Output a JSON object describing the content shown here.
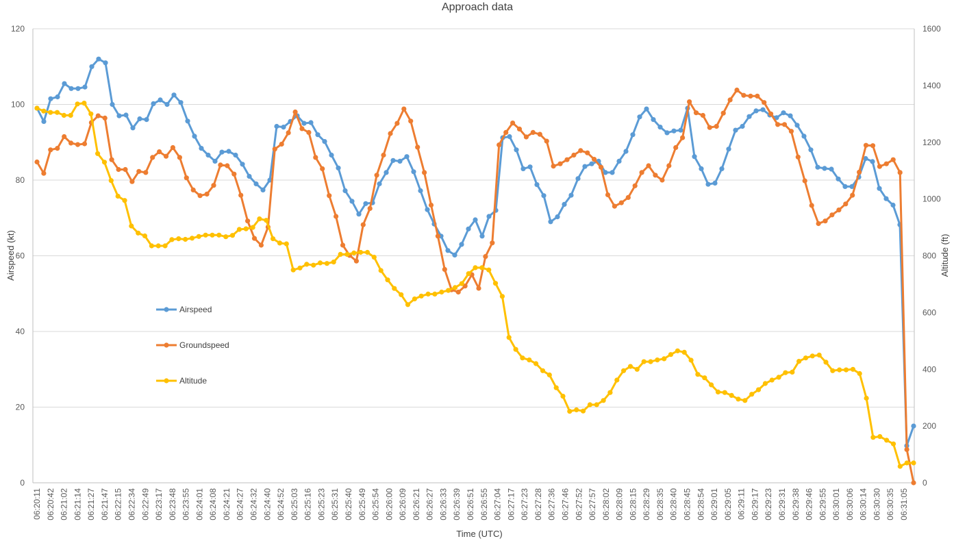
{
  "chart_data": {
    "type": "line",
    "title": "Approach data",
    "xlabel": "Time (UTC)",
    "ylabel": "Airspeed (kt)",
    "y2label": "Altitude (ft)",
    "ylim": [
      0,
      120
    ],
    "y2lim": [
      0,
      1600
    ],
    "yticks": [
      0,
      20,
      40,
      60,
      80,
      100,
      120
    ],
    "y2ticks": [
      0,
      200,
      400,
      600,
      800,
      1000,
      1200,
      1400,
      1600
    ],
    "grid": true,
    "legend_position": "left-middle",
    "x_tick_labels": [
      "06:20:11",
      "06:20:42",
      "06:21:02",
      "06:21:14",
      "06:21:27",
      "06:21:47",
      "06:22:15",
      "06:22:34",
      "06:22:49",
      "06:23:17",
      "06:23:48",
      "06:23:55",
      "06:24:01",
      "06:24:08",
      "06:24:21",
      "06:24:27",
      "06:24:32",
      "06:24:40",
      "06:24:52",
      "06:25:03",
      "06:25:16",
      "06:25:23",
      "06:25:31",
      "06:25:40",
      "06:25:49",
      "06:25:54",
      "06:26:00",
      "06:26:09",
      "06:26:21",
      "06:26:27",
      "06:26:33",
      "06:26:39",
      "06:26:51",
      "06:26:55",
      "06:27:04",
      "06:27:17",
      "06:27:23",
      "06:27:28",
      "06:27:36",
      "06:27:46",
      "06:27:52",
      "06:27:57",
      "06:28:02",
      "06:28:09",
      "06:28:15",
      "06:28:29",
      "06:28:35",
      "06:28:40",
      "06:28:45",
      "06:28:54",
      "06:29:01",
      "06:29:05",
      "06:29:11",
      "06:29:17",
      "06:29:23",
      "06:29:31",
      "06:29:38",
      "06:29:46",
      "06:29:55",
      "06:30:01",
      "06:30:06",
      "06:30:14",
      "06:30:30",
      "06:30:35",
      "06:31:05"
    ],
    "series": [
      {
        "name": "Airspeed",
        "axis": "left",
        "color": "#5B9BD5",
        "values": [
          99,
          95.5,
          101.5,
          102,
          105.5,
          104.2,
          104.2,
          104.6,
          110,
          112,
          111,
          100,
          97,
          97.2,
          93.8,
          96.2,
          96,
          100.2,
          101.2,
          100,
          102.5,
          100.5,
          95.6,
          91.6,
          88.4,
          86.6,
          85,
          87.4,
          87.6,
          86.6,
          84.2,
          81,
          79,
          77.4,
          80,
          94.2,
          94,
          95.5,
          97,
          95,
          95.2,
          92,
          90.2,
          86.6,
          83.2,
          77.2,
          74.4,
          71,
          73.8,
          74,
          79,
          82,
          85.2,
          85,
          86.2,
          82.2,
          77.2,
          72.2,
          68.4,
          65.2,
          61.4,
          60.2,
          63,
          67.1,
          69.5,
          65.2,
          70.4,
          72,
          91.2,
          91.5,
          88,
          83,
          83.5,
          78.8,
          75.9,
          69,
          70.3,
          73.6,
          76,
          80.4,
          83.6,
          84.3,
          85,
          82,
          82,
          85,
          87.6,
          92,
          96.7,
          98.8,
          96,
          94,
          92.5,
          93,
          93.2,
          99,
          86.2,
          83,
          78.9,
          79.2,
          83,
          88.2,
          93.2,
          94.2,
          96.8,
          98.3,
          98.6,
          97.2,
          96.5,
          97.8,
          97,
          94.5,
          91.6,
          88,
          83.4,
          83.1,
          82.9,
          80.3,
          78.3,
          78.3,
          80.8,
          85.7,
          84.9,
          77.8,
          75.1,
          73.4,
          68.2,
          9.8,
          15
        ]
      },
      {
        "name": "Groundspeed",
        "axis": "left",
        "color": "#ED7D31",
        "values": [
          84.8,
          81.8,
          88,
          88.4,
          91.5,
          89.8,
          89.4,
          89.6,
          95.2,
          97,
          96.4,
          85.4,
          82.8,
          82.8,
          79.6,
          82.3,
          82,
          86,
          87.5,
          86.3,
          88.6,
          86,
          80.6,
          77.4,
          75.9,
          76.3,
          78.6,
          84,
          83.8,
          81.6,
          76,
          69.2,
          64.6,
          62.8,
          67.6,
          88.2,
          89.5,
          92.5,
          98,
          93.6,
          92.6,
          86,
          83,
          75.9,
          70.4,
          62.8,
          60.1,
          58.6,
          68.2,
          72.5,
          81.3,
          86.6,
          92.3,
          95,
          98.8,
          95.6,
          88.7,
          82,
          73.4,
          65.2,
          56.4,
          51,
          50.4,
          52,
          55,
          51.4,
          59.8,
          63.4,
          89.3,
          92.6,
          95.1,
          93.5,
          91.4,
          92.6,
          92.1,
          90.3,
          83.7,
          84.3,
          85.4,
          86.6,
          87.8,
          87.2,
          85.5,
          83.4,
          76.1,
          73.1,
          74,
          75.4,
          78.5,
          82,
          83.8,
          81.3,
          80,
          83.8,
          88.6,
          91.2,
          100.7,
          97.8,
          97.1,
          93.9,
          94.2,
          97.7,
          101.2,
          103.8,
          102.4,
          102.2,
          102.2,
          100.5,
          97.5,
          94.7,
          94.7,
          92.9,
          86.1,
          79.8,
          73.3,
          68.5,
          69.2,
          70.8,
          72.1,
          73.7,
          76,
          82.1,
          89.2,
          89.1,
          83.6,
          84.3,
          85.4,
          82,
          8.8,
          0
        ]
      },
      {
        "name": "Altitude",
        "axis": "right",
        "color": "#FFC000",
        "values": [
          1320,
          1310,
          1305,
          1305,
          1295,
          1295,
          1335,
          1338,
          1300,
          1160,
          1130,
          1065,
          1010,
          995,
          905,
          880,
          870,
          835,
          835,
          835,
          857,
          860,
          858,
          862,
          868,
          873,
          873,
          873,
          867,
          872,
          893,
          895,
          900,
          930,
          925,
          860,
          845,
          842,
          750,
          757,
          770,
          767,
          775,
          773,
          778,
          805,
          805,
          810,
          812,
          812,
          795,
          748,
          715,
          685,
          663,
          628,
          648,
          658,
          665,
          665,
          672,
          678,
          688,
          702,
          737,
          758,
          758,
          750,
          703,
          657,
          512,
          470,
          440,
          433,
          420,
          395,
          380,
          335,
          305,
          252,
          257,
          253,
          275,
          275,
          290,
          318,
          362,
          395,
          410,
          400,
          427,
          427,
          433,
          437,
          452,
          465,
          460,
          432,
          382,
          370,
          345,
          320,
          318,
          308,
          295,
          290,
          312,
          328,
          350,
          362,
          372,
          388,
          390,
          428,
          440,
          447,
          450,
          425,
          395,
          398,
          398,
          400,
          385,
          298,
          160,
          163,
          150,
          137,
          58,
          70,
          70
        ]
      }
    ]
  }
}
